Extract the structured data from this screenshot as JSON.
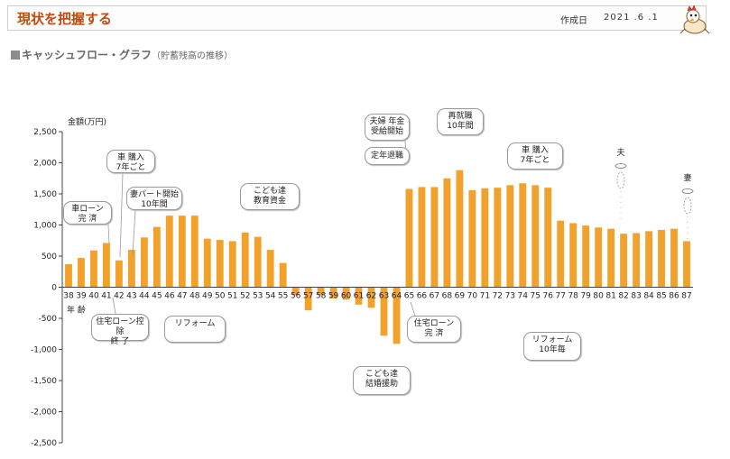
{
  "header": {
    "title": "現状を把握する",
    "date_label": "作成日",
    "date_value": "2021 .6 .1"
  },
  "section": {
    "title": "キャッシュフロー・グラフ",
    "subtitle": "（貯蓄残高の推移）"
  },
  "colors": {
    "bar": "#f2a12a",
    "title": "#c24a12",
    "axis": "#444444"
  },
  "chart_data": {
    "type": "bar",
    "ylabel": "金額(万円)",
    "xlabel": "年 齢",
    "ylim": [
      -2500,
      2500
    ],
    "yticks": [
      2500,
      2000,
      1500,
      1000,
      500,
      0,
      -500,
      -1000,
      -1500,
      -2000,
      -2500
    ],
    "ytick_labels": [
      "2,500",
      "2,000",
      "1,500",
      "1,000",
      "500",
      "0",
      "-500",
      "-1,000",
      "-1,500",
      "-2,000",
      "-2,500"
    ],
    "categories": [
      "38",
      "39",
      "40",
      "41",
      "42",
      "43",
      "44",
      "45",
      "46",
      "47",
      "48",
      "49",
      "50",
      "51",
      "52",
      "53",
      "54",
      "55",
      "56",
      "57",
      "58",
      "59",
      "60",
      "61",
      "62",
      "63",
      "64",
      "65",
      "66",
      "67",
      "68",
      "69",
      "70",
      "71",
      "72",
      "73",
      "74",
      "75",
      "76",
      "77",
      "78",
      "79",
      "80",
      "81",
      "82",
      "83",
      "84",
      "85",
      "86",
      "87"
    ],
    "values": [
      370,
      470,
      590,
      710,
      430,
      600,
      800,
      970,
      1150,
      1150,
      1150,
      780,
      760,
      740,
      880,
      810,
      600,
      390,
      -130,
      -370,
      -130,
      -180,
      -200,
      -280,
      -330,
      -780,
      -910,
      1580,
      1610,
      1610,
      1750,
      1880,
      1560,
      1590,
      1600,
      1640,
      1670,
      1640,
      1600,
      1070,
      1030,
      990,
      960,
      940,
      860,
      870,
      900,
      920,
      940,
      740
    ],
    "annotations": [
      {
        "text": "車ローン\n完 済"
      },
      {
        "text": "車 購入\n7年ごと"
      },
      {
        "text": "妻パート開始\n10年間"
      },
      {
        "text": "こども達\n教育資金"
      },
      {
        "text": "住宅ローン控除\n終 了"
      },
      {
        "text": "リフォーム"
      },
      {
        "text": "夫婦 年金\n受給開始"
      },
      {
        "text": "再就職\n10年間"
      },
      {
        "text": "定年退職"
      },
      {
        "text": "車 購入\n7年ごと"
      },
      {
        "text": "こども達\n結婚援助"
      },
      {
        "text": "住宅ローン\n完 済"
      },
      {
        "text": "リフォーム\n10年毎"
      }
    ],
    "markers": [
      {
        "text": "夫"
      },
      {
        "text": "妻"
      }
    ]
  }
}
